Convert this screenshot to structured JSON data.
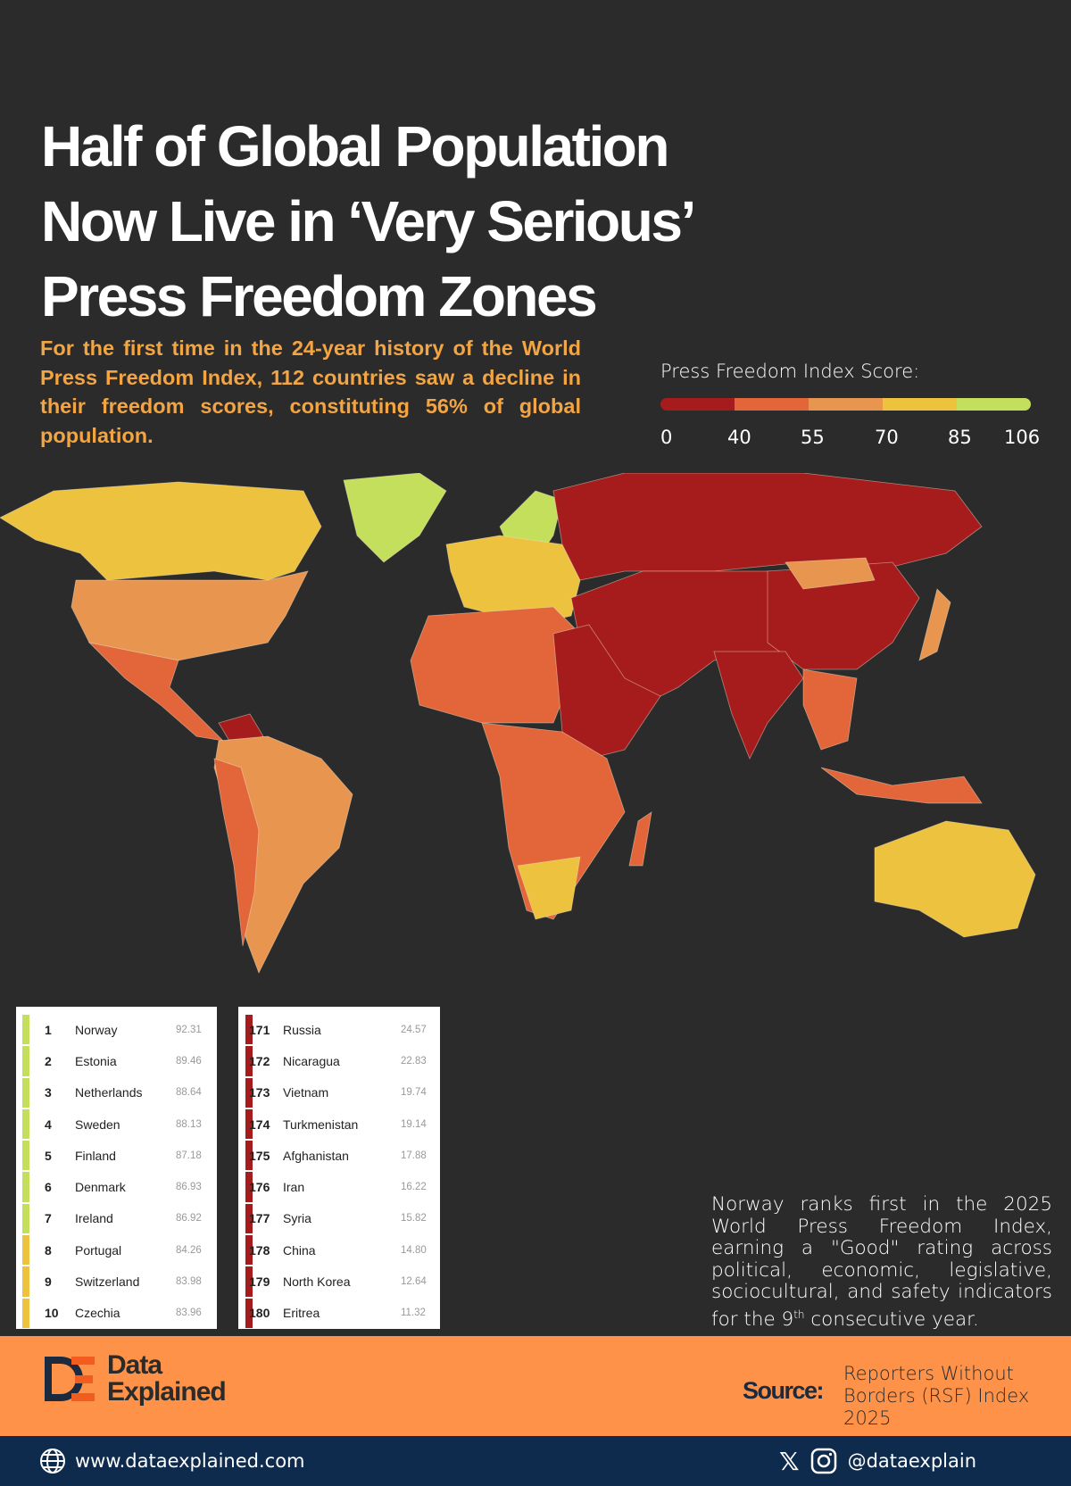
{
  "title": [
    "Half of Global Population",
    "Now Live in ‘Very Serious’",
    "Press Freedom Zones"
  ],
  "subtitle": "For the first time in the 24-year history of the World Press Freedom Index, 112 countries saw a decline in their freedom scores, constituting 56% of global population.",
  "legend": {
    "label": "Press Freedom Index Score:",
    "ticks": [
      "0",
      "40",
      "55",
      "70",
      "85",
      "106"
    ],
    "colors": [
      "#a61c1c",
      "#e2663a",
      "#e8964f",
      "#ecc23e",
      "#c3df5c"
    ]
  },
  "top_table": [
    {
      "rank": "1",
      "country": "Norway",
      "score": "92.31",
      "color": "#c3df5c"
    },
    {
      "rank": "2",
      "country": "Estonia",
      "score": "89.46",
      "color": "#c3df5c"
    },
    {
      "rank": "3",
      "country": "Netherlands",
      "score": "88.64",
      "color": "#c3df5c"
    },
    {
      "rank": "4",
      "country": "Sweden",
      "score": "88.13",
      "color": "#c3df5c"
    },
    {
      "rank": "5",
      "country": "Finland",
      "score": "87.18",
      "color": "#c3df5c"
    },
    {
      "rank": "6",
      "country": "Denmark",
      "score": "86.93",
      "color": "#c3df5c"
    },
    {
      "rank": "7",
      "country": "Ireland",
      "score": "86.92",
      "color": "#c3df5c"
    },
    {
      "rank": "8",
      "country": "Portugal",
      "score": "84.26",
      "color": "#ecc23e"
    },
    {
      "rank": "9",
      "country": "Switzerland",
      "score": "83.98",
      "color": "#ecc23e"
    },
    {
      "rank": "10",
      "country": "Czechia",
      "score": "83.96",
      "color": "#ecc23e"
    }
  ],
  "bottom_table": [
    {
      "rank": "171",
      "country": "Russia",
      "score": "24.57",
      "color": "#a61c1c"
    },
    {
      "rank": "172",
      "country": "Nicaragua",
      "score": "22.83",
      "color": "#a61c1c"
    },
    {
      "rank": "173",
      "country": "Vietnam",
      "score": "19.74",
      "color": "#a61c1c"
    },
    {
      "rank": "174",
      "country": "Turkmenistan",
      "score": "19.14",
      "color": "#a61c1c"
    },
    {
      "rank": "175",
      "country": "Afghanistan",
      "score": "17.88",
      "color": "#a61c1c"
    },
    {
      "rank": "176",
      "country": "Iran",
      "score": "16.22",
      "color": "#a61c1c"
    },
    {
      "rank": "177",
      "country": "Syria",
      "score": "15.82",
      "color": "#a61c1c"
    },
    {
      "rank": "178",
      "country": "China",
      "score": "14.80",
      "color": "#a61c1c"
    },
    {
      "rank": "179",
      "country": "North Korea",
      "score": "12.64",
      "color": "#a61c1c"
    },
    {
      "rank": "180",
      "country": "Eritrea",
      "score": "11.32",
      "color": "#a61c1c"
    }
  ],
  "note": {
    "text_before": "Norway ranks first in the 2025 World Press Freedom Index, earning a \"Good\" rating across political, economic, legislative, sociocultural, and safety indicators for the 9",
    "superscript": "th",
    "text_after": " consecutive year."
  },
  "footer": {
    "brand_line1": "Data",
    "brand_line2": "Explained",
    "source_label": "Source:",
    "source_text": "Reporters Without Borders (RSF) Index 2025",
    "website": "www.dataexplained.com",
    "handle": "@dataexplain",
    "accent": "#fe9249",
    "navy": "#0e2a4c"
  }
}
